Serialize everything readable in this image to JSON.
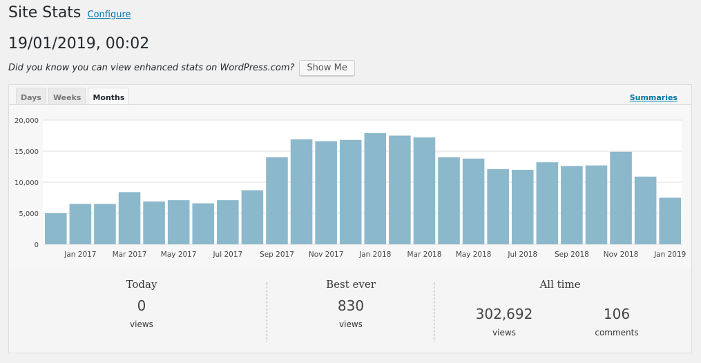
{
  "header": {
    "title": "Site Stats",
    "configure_label": "Configure"
  },
  "datetime": "19/01/2019, 00:02",
  "notice": {
    "text": "Did you know you can view enhanced stats on WordPress.com?",
    "button_label": "Show Me"
  },
  "tabs": [
    {
      "label": "Days",
      "active": false
    },
    {
      "label": "Weeks",
      "active": false
    },
    {
      "label": "Months",
      "active": true
    }
  ],
  "summaries_label": "Summaries",
  "colors": {
    "bar": "#8cb8cc",
    "link": "#0073aa"
  },
  "chart_data": {
    "type": "bar",
    "categories": [
      "Dec 2016",
      "Jan 2017",
      "Feb 2017",
      "Mar 2017",
      "Apr 2017",
      "May 2017",
      "Jun 2017",
      "Jul 2017",
      "Aug 2017",
      "Sep 2017",
      "Oct 2017",
      "Nov 2017",
      "Dec 2017",
      "Jan 2018",
      "Feb 2018",
      "Mar 2018",
      "Apr 2018",
      "May 2018",
      "Jun 2018",
      "Jul 2018",
      "Aug 2018",
      "Sep 2018",
      "Oct 2018",
      "Nov 2018",
      "Dec 2018",
      "Jan 2019"
    ],
    "x_tick_labels": [
      "Jan 2017",
      "Mar 2017",
      "May 2017",
      "Jul 2017",
      "Sep 2017",
      "Nov 2017",
      "Jan 2018",
      "Mar 2018",
      "May 2018",
      "Jul 2018",
      "Sep 2018",
      "Nov 2018",
      "Jan 2019"
    ],
    "values": [
      5000,
      6500,
      6500,
      8400,
      6900,
      7100,
      6600,
      7100,
      8700,
      14000,
      16900,
      16600,
      16800,
      17900,
      17500,
      17200,
      14000,
      13800,
      12100,
      12000,
      13200,
      12600,
      12700,
      14900,
      10900,
      7500
    ],
    "y_ticks": [
      "0",
      "5,000",
      "10,000",
      "15,000",
      "20,000"
    ],
    "ylim": [
      0,
      20000
    ],
    "grid": true
  },
  "stats": {
    "today": {
      "heading": "Today",
      "value": "0",
      "unit": "views"
    },
    "best": {
      "heading": "Best ever",
      "value": "830",
      "unit": "views"
    },
    "all_time": {
      "heading": "All time",
      "views_value": "302,692",
      "views_unit": "views",
      "comments_value": "106",
      "comments_unit": "comments"
    }
  }
}
